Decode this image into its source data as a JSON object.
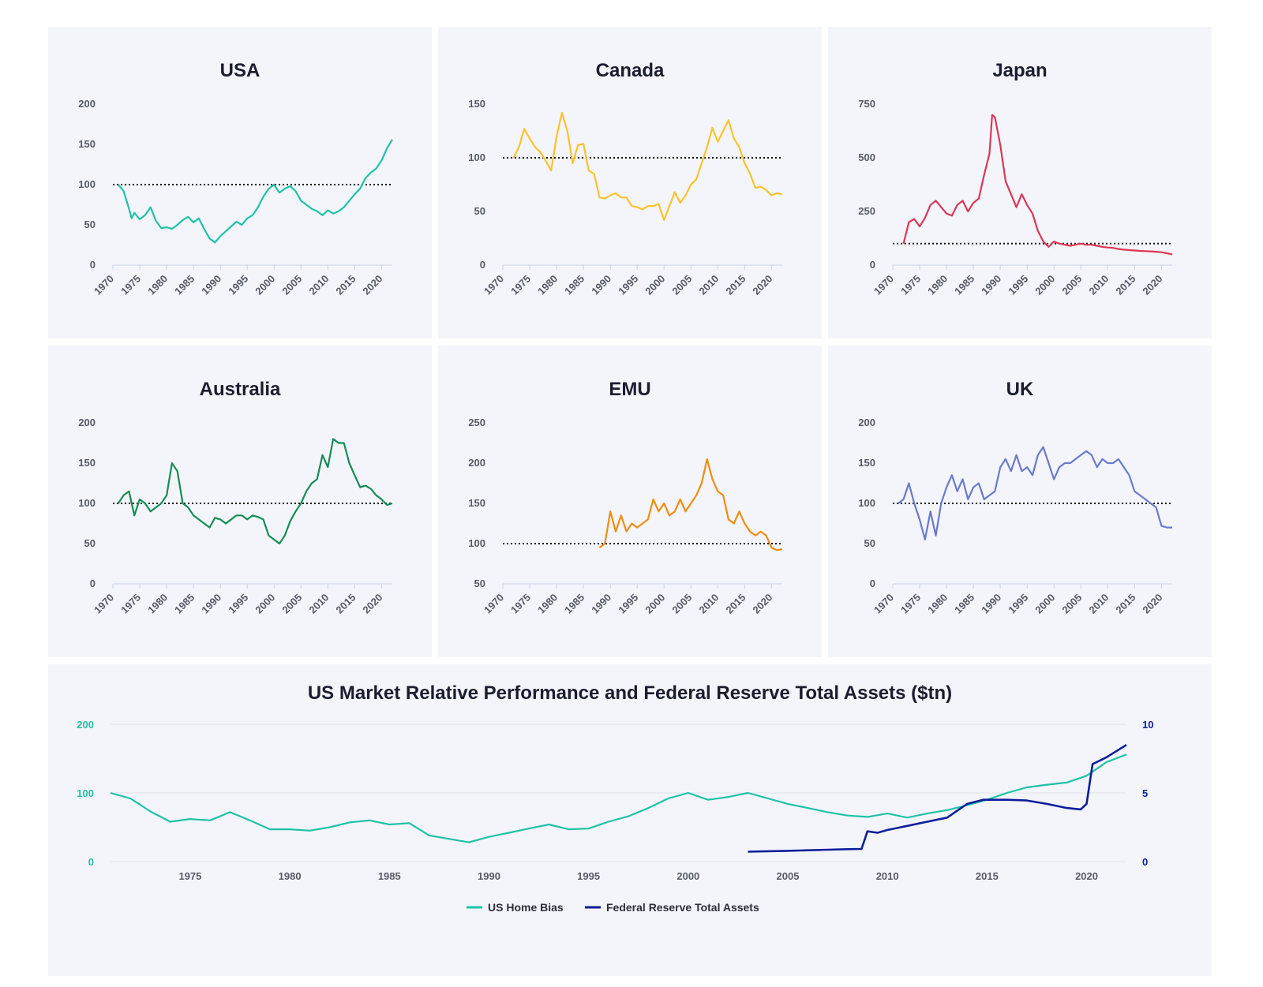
{
  "colors": {
    "usa": "#1fc2a7",
    "canada": "#fbc22d",
    "japan": "#dc3655",
    "australia": "#138d55",
    "emu": "#f28c0f",
    "uk": "#6b79cd",
    "us_home_bias": "#1fc2a7",
    "fed_assets": "#0c1e9a"
  },
  "chart_data": [
    {
      "type": "line",
      "title": "USA",
      "color_key": "usa",
      "xlim": [
        1970,
        2022
      ],
      "ylim": [
        0,
        200
      ],
      "xticks": [
        "1970",
        "1975",
        "1980",
        "1985",
        "1990",
        "1995",
        "2000",
        "2005",
        "2010",
        "2015",
        "2020"
      ],
      "yticks": [
        "0",
        "50",
        "100",
        "150",
        "200"
      ],
      "reference_line": 100,
      "series": [
        {
          "name": "USA",
          "x": [
            1971,
            1972,
            1973,
            1973.5,
            1974,
            1975,
            1976,
            1977,
            1978,
            1979,
            1980,
            1981,
            1982,
            1983,
            1984,
            1985,
            1986,
            1987,
            1988,
            1989,
            1990,
            1991,
            1992,
            1993,
            1994,
            1995,
            1996,
            1997,
            1998,
            1999,
            2000,
            2001,
            2002,
            2003,
            2004,
            2005,
            2006,
            2007,
            2008,
            2009,
            2010,
            2011,
            2012,
            2013,
            2014,
            2015,
            2016,
            2017,
            2018,
            2019,
            2020,
            2021,
            2022
          ],
          "values": [
            100,
            92,
            70,
            58,
            65,
            57,
            62,
            72,
            55,
            46,
            47,
            45,
            50,
            56,
            60,
            53,
            58,
            45,
            33,
            28,
            36,
            42,
            48,
            54,
            50,
            58,
            62,
            72,
            85,
            95,
            100,
            90,
            95,
            98,
            92,
            80,
            75,
            70,
            67,
            62,
            68,
            64,
            67,
            72,
            80,
            88,
            95,
            108,
            115,
            120,
            130,
            145,
            156
          ]
        }
      ]
    },
    {
      "type": "line",
      "title": "Canada",
      "color_key": "canada",
      "xlim": [
        1970,
        2022
      ],
      "ylim": [
        0,
        150
      ],
      "xticks": [
        "1970",
        "1975",
        "1980",
        "1985",
        "1990",
        "1995",
        "2000",
        "2005",
        "2010",
        "2015",
        "2020"
      ],
      "yticks": [
        "0",
        "50",
        "100",
        "150"
      ],
      "reference_line": 100,
      "series": [
        {
          "name": "Canada",
          "x": [
            1972,
            1973,
            1974,
            1975,
            1976,
            1977,
            1978,
            1979,
            1980,
            1981,
            1982,
            1983,
            1984,
            1985,
            1986,
            1987,
            1988,
            1989,
            1990,
            1991,
            1992,
            1993,
            1994,
            1995,
            1996,
            1997,
            1998,
            1999,
            2000,
            2001,
            2002,
            2003,
            2004,
            2005,
            2006,
            2007,
            2008,
            2009,
            2010,
            2011,
            2012,
            2013,
            2014,
            2015,
            2016,
            2017,
            2018,
            2019,
            2020,
            2021,
            2022
          ],
          "values": [
            100,
            110,
            127,
            118,
            110,
            105,
            97,
            88,
            120,
            142,
            125,
            95,
            112,
            113,
            88,
            85,
            63,
            62,
            65,
            67,
            63,
            63,
            55,
            54,
            52,
            55,
            55,
            57,
            42,
            55,
            68,
            58,
            65,
            75,
            80,
            95,
            110,
            128,
            115,
            125,
            135,
            118,
            110,
            95,
            85,
            72,
            73,
            70,
            65,
            67,
            66
          ]
        }
      ]
    },
    {
      "type": "line",
      "title": "Japan",
      "color_key": "japan",
      "xlim": [
        1970,
        2022
      ],
      "ylim": [
        0,
        750
      ],
      "xticks": [
        "1970",
        "1975",
        "1980",
        "1985",
        "1990",
        "1995",
        "2000",
        "2005",
        "2010",
        "2015",
        "2020"
      ],
      "yticks": [
        "0",
        "250",
        "500",
        "750"
      ],
      "reference_line": 100,
      "series": [
        {
          "name": "Japan",
          "x": [
            1972,
            1973,
            1974,
            1975,
            1976,
            1977,
            1978,
            1979,
            1980,
            1981,
            1982,
            1983,
            1984,
            1985,
            1986,
            1987,
            1988,
            1988.5,
            1989,
            1990,
            1991,
            1992,
            1993,
            1994,
            1995,
            1996,
            1997,
            1998,
            1999,
            2000,
            2001,
            2002,
            2003,
            2004,
            2005,
            2006,
            2007,
            2008,
            2009,
            2010,
            2011,
            2012,
            2013,
            2014,
            2015,
            2016,
            2017,
            2018,
            2019,
            2020,
            2021,
            2022
          ],
          "values": [
            100,
            200,
            215,
            180,
            220,
            280,
            300,
            270,
            240,
            230,
            280,
            300,
            250,
            290,
            310,
            420,
            520,
            700,
            690,
            560,
            390,
            330,
            270,
            330,
            280,
            240,
            160,
            110,
            85,
            110,
            100,
            95,
            90,
            95,
            100,
            95,
            95,
            90,
            85,
            82,
            80,
            75,
            72,
            70,
            68,
            66,
            65,
            64,
            62,
            60,
            55,
            50
          ]
        }
      ]
    },
    {
      "type": "line",
      "title": "Australia",
      "color_key": "australia",
      "xlim": [
        1970,
        2022
      ],
      "ylim": [
        0,
        200
      ],
      "xticks": [
        "1970",
        "1975",
        "1980",
        "1985",
        "1990",
        "1995",
        "2000",
        "2005",
        "2010",
        "2015",
        "2020"
      ],
      "yticks": [
        "0",
        "50",
        "100",
        "150",
        "200"
      ],
      "reference_line": 100,
      "series": [
        {
          "name": "Australia",
          "x": [
            1971,
            1972,
            1973,
            1974,
            1975,
            1976,
            1977,
            1978,
            1979,
            1980,
            1981,
            1982,
            1983,
            1984,
            1985,
            1986,
            1987,
            1988,
            1989,
            1990,
            1991,
            1992,
            1993,
            1994,
            1995,
            1996,
            1997,
            1998,
            1999,
            2000,
            2001,
            2002,
            2003,
            2004,
            2005,
            2006,
            2007,
            2008,
            2009,
            2010,
            2011,
            2012,
            2013,
            2014,
            2015,
            2016,
            2017,
            2018,
            2019,
            2020,
            2021,
            2022
          ],
          "values": [
            100,
            110,
            115,
            85,
            105,
            100,
            90,
            95,
            100,
            110,
            150,
            140,
            100,
            95,
            85,
            80,
            75,
            70,
            82,
            80,
            75,
            80,
            85,
            85,
            80,
            85,
            83,
            80,
            60,
            55,
            50,
            60,
            78,
            90,
            100,
            115,
            125,
            130,
            160,
            145,
            180,
            175,
            175,
            150,
            135,
            120,
            122,
            118,
            110,
            105,
            98,
            100
          ]
        }
      ]
    },
    {
      "type": "line",
      "title": "EMU",
      "color_key": "emu",
      "xlim": [
        1970,
        2022
      ],
      "ylim": [
        50,
        250
      ],
      "xticks": [
        "1970",
        "1975",
        "1980",
        "1985",
        "1990",
        "1995",
        "2000",
        "2005",
        "2010",
        "2015",
        "2020"
      ],
      "yticks": [
        "50",
        "100",
        "150",
        "200",
        "250"
      ],
      "reference_line": 100,
      "series": [
        {
          "name": "EMU",
          "x": [
            1988,
            1989,
            1990,
            1991,
            1992,
            1993,
            1994,
            1995,
            1996,
            1997,
            1998,
            1999,
            2000,
            2001,
            2002,
            2003,
            2004,
            2005,
            2006,
            2007,
            2008,
            2009,
            2010,
            2011,
            2012,
            2013,
            2014,
            2015,
            2016,
            2017,
            2018,
            2019,
            2020,
            2021,
            2022
          ],
          "values": [
            95,
            100,
            140,
            115,
            135,
            115,
            125,
            120,
            125,
            130,
            155,
            140,
            150,
            135,
            140,
            155,
            140,
            150,
            160,
            175,
            205,
            180,
            165,
            160,
            130,
            125,
            140,
            125,
            115,
            110,
            115,
            110,
            95,
            92,
            93
          ]
        }
      ]
    },
    {
      "type": "line",
      "title": "UK",
      "color_key": "uk",
      "xlim": [
        1970,
        2022
      ],
      "ylim": [
        0,
        200
      ],
      "xticks": [
        "1970",
        "1975",
        "1980",
        "1985",
        "1990",
        "1995",
        "2000",
        "2005",
        "2010",
        "2015",
        "2020"
      ],
      "yticks": [
        "0",
        "50",
        "100",
        "150",
        "200"
      ],
      "reference_line": 100,
      "series": [
        {
          "name": "UK",
          "x": [
            1971,
            1972,
            1973,
            1974,
            1975,
            1976,
            1977,
            1978,
            1979,
            1980,
            1981,
            1982,
            1983,
            1984,
            1985,
            1986,
            1987,
            1988,
            1989,
            1990,
            1991,
            1992,
            1993,
            1994,
            1995,
            1996,
            1997,
            1998,
            1999,
            2000,
            2001,
            2002,
            2003,
            2004,
            2005,
            2006,
            2007,
            2008,
            2009,
            2010,
            2011,
            2012,
            2013,
            2014,
            2015,
            2016,
            2017,
            2018,
            2019,
            2020,
            2021,
            2022
          ],
          "values": [
            100,
            105,
            125,
            100,
            80,
            55,
            90,
            60,
            100,
            120,
            135,
            115,
            130,
            105,
            120,
            125,
            105,
            110,
            115,
            145,
            155,
            140,
            160,
            140,
            145,
            135,
            160,
            170,
            150,
            130,
            145,
            150,
            150,
            155,
            160,
            165,
            160,
            145,
            155,
            150,
            150,
            155,
            145,
            135,
            115,
            110,
            105,
            100,
            95,
            72,
            70,
            70
          ]
        }
      ]
    },
    {
      "type": "line",
      "title": "US Market Relative Performance and Federal Reserve Total Assets ($tn)",
      "xlim": [
        1971,
        2022
      ],
      "ylim": [
        0,
        200
      ],
      "y2lim": [
        0,
        10
      ],
      "xticks": [
        "1975",
        "1980",
        "1985",
        "1990",
        "1995",
        "2000",
        "2005",
        "2010",
        "2015",
        "2020"
      ],
      "yticks": [
        "0",
        "100",
        "200"
      ],
      "y2ticks": [
        "0",
        "5",
        "10"
      ],
      "legend_position": "bottom-center",
      "series": [
        {
          "name": "US Home Bias",
          "color_key": "us_home_bias",
          "axis": "left",
          "x": [
            1971,
            1972,
            1973,
            1974,
            1975,
            1976,
            1977,
            1978,
            1979,
            1980,
            1981,
            1982,
            1983,
            1984,
            1985,
            1986,
            1987,
            1988,
            1989,
            1990,
            1991,
            1992,
            1993,
            1994,
            1995,
            1996,
            1997,
            1998,
            1999,
            2000,
            2001,
            2002,
            2003,
            2004,
            2005,
            2006,
            2007,
            2008,
            2009,
            2010,
            2011,
            2012,
            2013,
            2014,
            2015,
            2016,
            2017,
            2018,
            2019,
            2020,
            2021,
            2022
          ],
          "values": [
            100,
            92,
            73,
            58,
            62,
            60,
            72,
            60,
            47,
            47,
            45,
            50,
            57,
            60,
            54,
            56,
            38,
            33,
            28,
            36,
            42,
            48,
            54,
            47,
            48,
            58,
            66,
            78,
            92,
            100,
            90,
            94,
            100,
            92,
            84,
            78,
            72,
            67,
            65,
            70,
            64,
            70,
            75,
            82,
            90,
            100,
            108,
            112,
            115,
            125,
            145,
            156
          ]
        },
        {
          "name": "Federal Reserve Total Assets",
          "color_key": "fed_assets",
          "axis": "right",
          "x": [
            2003,
            2004,
            2005,
            2006,
            2007,
            2008,
            2008.7,
            2009,
            2009.5,
            2010,
            2011,
            2012,
            2013,
            2014,
            2014.8,
            2015,
            2016,
            2017,
            2018,
            2019,
            2019.7,
            2020,
            2020.3,
            2021,
            2022
          ],
          "values": [
            0.72,
            0.75,
            0.78,
            0.82,
            0.86,
            0.9,
            0.92,
            2.2,
            2.1,
            2.3,
            2.6,
            2.9,
            3.2,
            4.2,
            4.5,
            4.5,
            4.5,
            4.45,
            4.2,
            3.9,
            3.8,
            4.2,
            7.1,
            7.6,
            8.5
          ]
        }
      ]
    }
  ]
}
